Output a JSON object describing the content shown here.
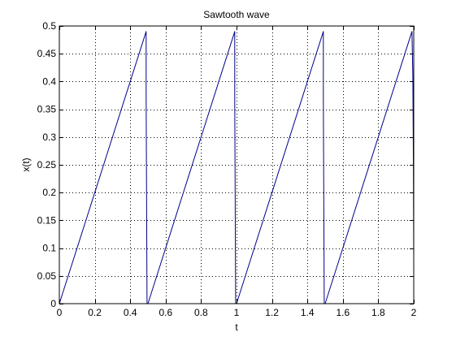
{
  "chart_data": {
    "type": "line",
    "title": "Sawtooth wave",
    "xlabel": "t",
    "ylabel": "x(t)",
    "xlim": [
      0,
      2
    ],
    "ylim": [
      0,
      0.5
    ],
    "xticks": [
      0,
      0.2,
      0.4,
      0.6,
      0.8,
      1,
      1.2,
      1.4,
      1.6,
      1.8,
      2
    ],
    "xtick_labels": [
      "0",
      "0.2",
      "0.4",
      "0.6",
      "0.8",
      "1",
      "1.2",
      "1.4",
      "1.6",
      "1.8",
      "2"
    ],
    "yticks": [
      0,
      0.05,
      0.1,
      0.15,
      0.2,
      0.25,
      0.3,
      0.35,
      0.4,
      0.45,
      0.5
    ],
    "ytick_labels": [
      "0",
      "0.05",
      "0.1",
      "0.15",
      "0.2",
      "0.25",
      "0.3",
      "0.35",
      "0.4",
      "0.45",
      "0.5"
    ],
    "grid": true,
    "grid_style": "dotted",
    "line_color": "#00008b",
    "series": [
      {
        "x": [
          0,
          0.49,
          0.49,
          0.495,
          0.5,
          0.99,
          0.99,
          0.995,
          1.0,
          1.49,
          1.49,
          1.495,
          1.5,
          1.99,
          1.995,
          1.998,
          2.0
        ],
        "y": [
          0,
          0.49,
          0.37,
          0,
          0,
          0.49,
          0.37,
          0,
          0,
          0.49,
          0.37,
          0,
          0,
          0.49,
          0.41,
          0.25,
          0.08
        ]
      }
    ]
  }
}
